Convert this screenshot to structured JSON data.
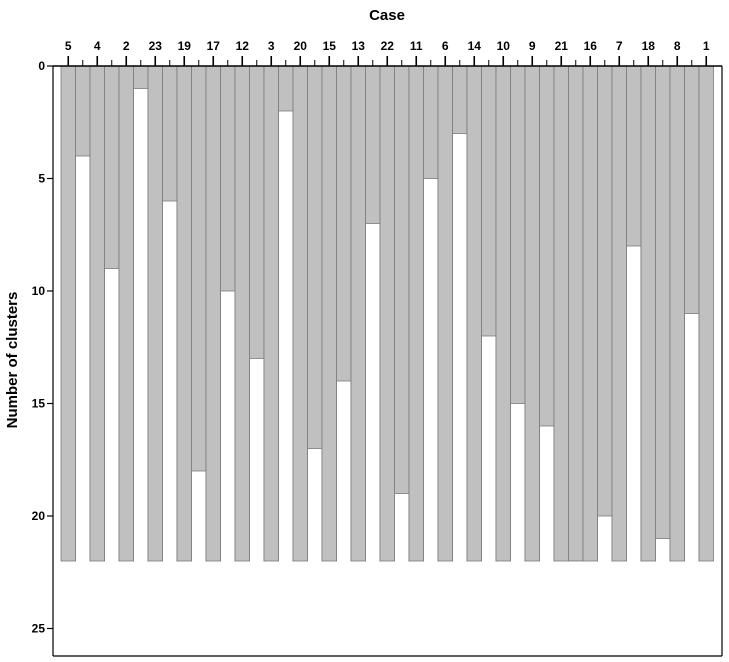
{
  "chart_data": {
    "type": "bar",
    "subtype": "icicle-plot",
    "title": "Case",
    "xlabel": "Case",
    "ylabel": "Number of clusters",
    "ylim": [
      0,
      26
    ],
    "yticks": [
      0,
      5,
      10,
      15,
      20,
      25
    ],
    "y_reversed": true,
    "bar_extent": 22,
    "categories": [
      "5",
      "4",
      "2",
      "23",
      "19",
      "17",
      "12",
      "3",
      "20",
      "15",
      "13",
      "22",
      "11",
      "6",
      "14",
      "10",
      "9",
      "21",
      "16",
      "7",
      "18",
      "8",
      "1"
    ],
    "join_levels": [
      4,
      9,
      1,
      6,
      18,
      10,
      13,
      2,
      17,
      14,
      7,
      19,
      5,
      3,
      12,
      15,
      16,
      22,
      20,
      8,
      21,
      11
    ],
    "colors": {
      "bar": "#c0c0c0",
      "bar_edge": "#7a7a7a",
      "axis": "#000000",
      "background": "#ffffff"
    }
  }
}
